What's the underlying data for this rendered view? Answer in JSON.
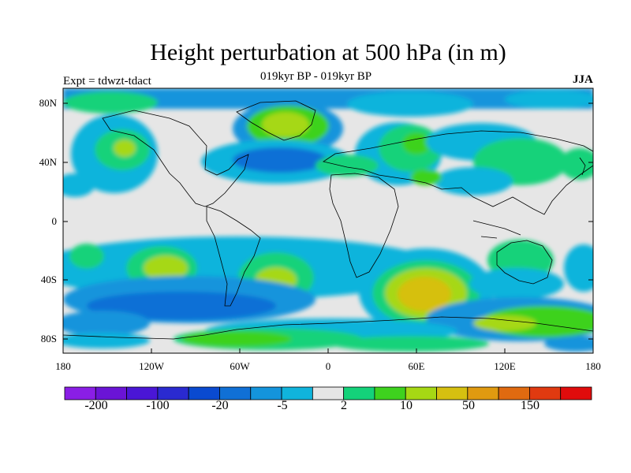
{
  "map": {
    "title": "Height perturbation at 500 hPa (in m)",
    "subtitle": "019kyr BP - 019kyr BP",
    "left_label": "Expt = tdwzt-tdact",
    "season": "JJA",
    "lat_labels": [
      "80N",
      "40N",
      "0",
      "40S",
      "80S"
    ],
    "lon_labels": [
      "180",
      "120W",
      "60W",
      "0",
      "60E",
      "120E",
      "180"
    ]
  },
  "colorbar": {
    "colors": [
      "#8a1ee6",
      "#6a14d6",
      "#4a16d6",
      "#2a2ad0",
      "#0a4ad0",
      "#1070d6",
      "#1494dc",
      "#10b4dc",
      "#e6e6e6",
      "#14d27a",
      "#3ed21e",
      "#a6d814",
      "#d6c010",
      "#e09a10",
      "#e06a10",
      "#e03a10",
      "#e00c0c"
    ],
    "labels": [
      "-200",
      "-100",
      "-20",
      "-5",
      "2",
      "10",
      "50",
      "150"
    ]
  },
  "colors": {
    "background_neutral": "#e6e6e6",
    "coastline": "#000000"
  }
}
